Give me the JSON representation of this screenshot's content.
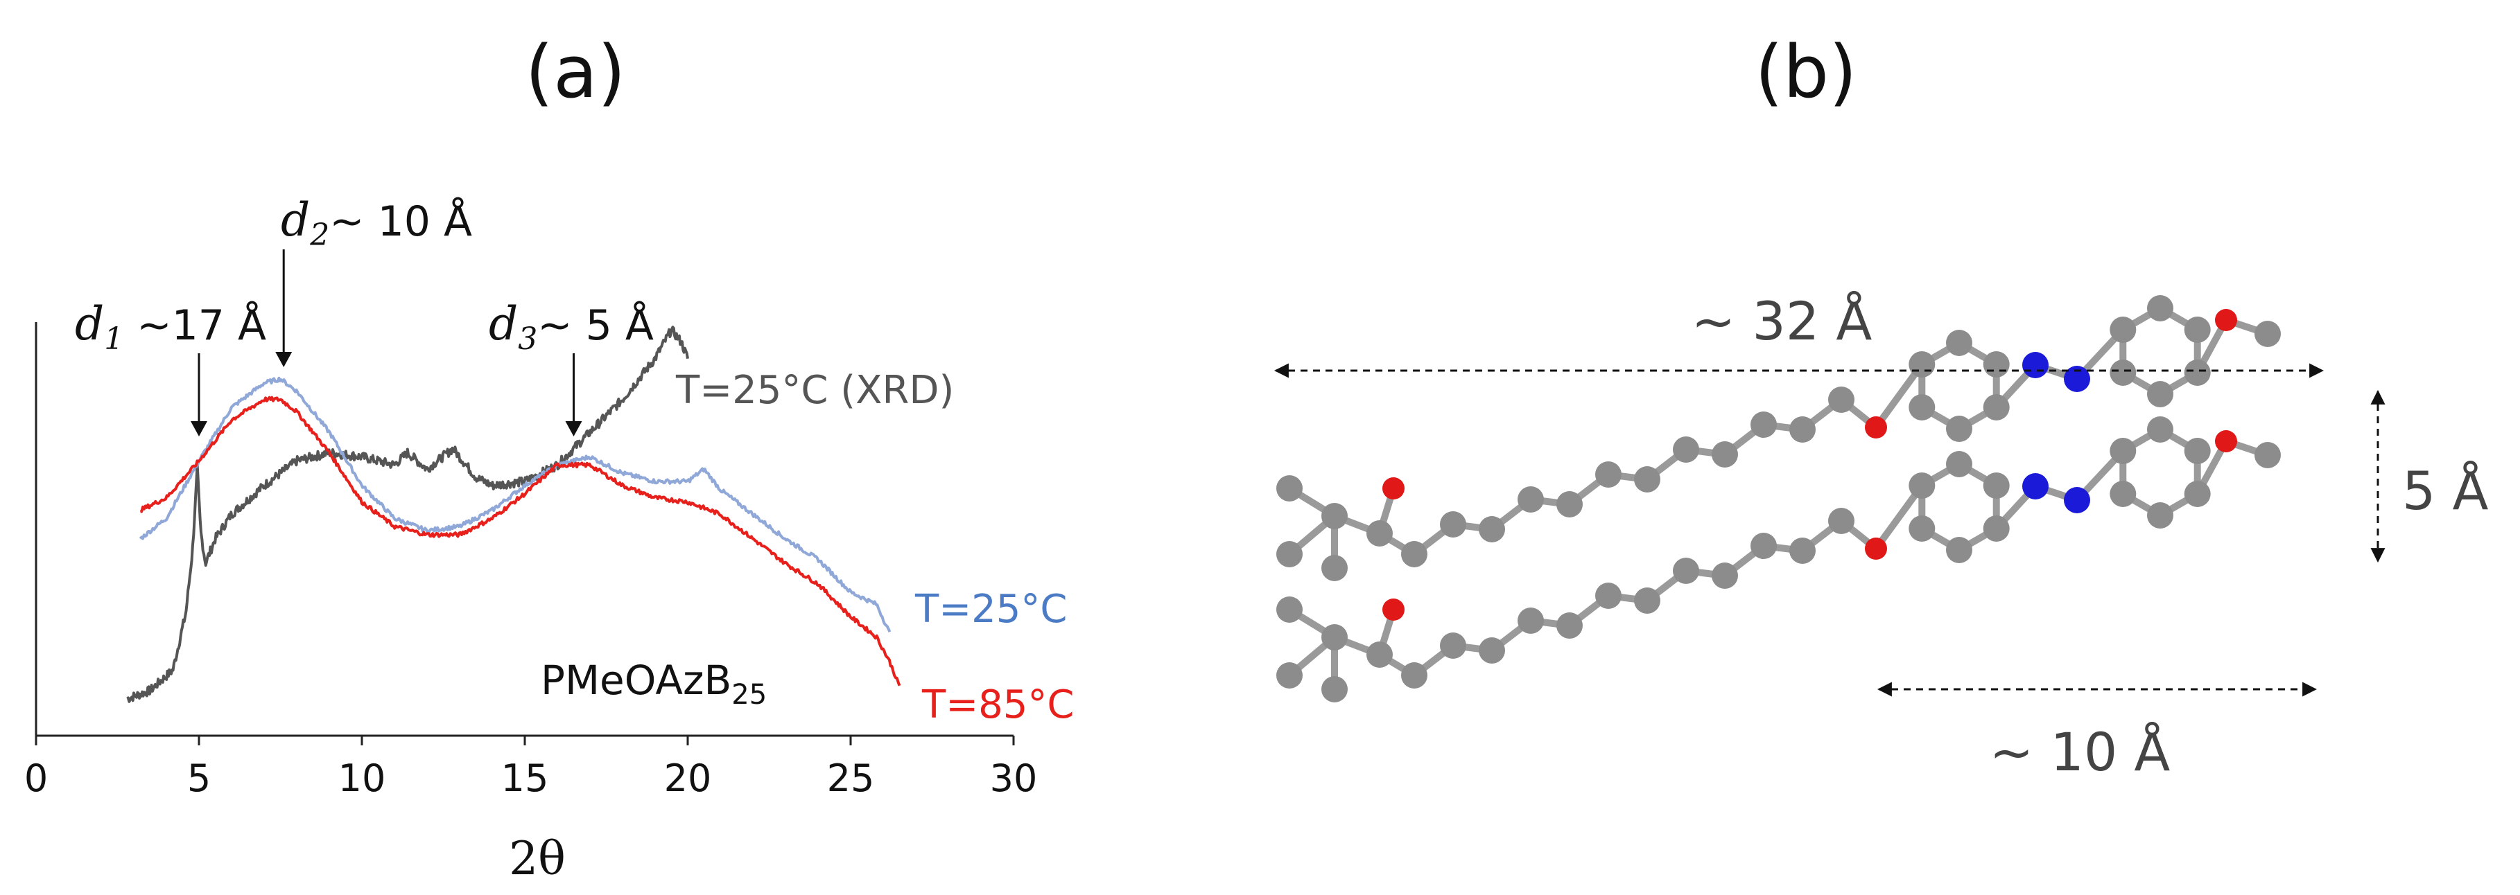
{
  "figure": {
    "panel_a_label": "(a)",
    "panel_b_label": "(b)"
  },
  "chart_data": {
    "type": "line",
    "xlabel": "2θ",
    "ylabel": "",
    "xlim": [
      0,
      30
    ],
    "xticks": [
      "0",
      "5",
      "10",
      "15",
      "20",
      "25",
      "30"
    ],
    "grid": false,
    "sample_label": "PMeOAzB",
    "sample_label_subscript": "25",
    "annotations": [
      {
        "var": "d",
        "sub": "1",
        "text": " ~17 Å",
        "x": 5.0
      },
      {
        "var": "d",
        "sub": "2",
        "text": "~ 10 Å",
        "x": 7.6
      },
      {
        "var": "d",
        "sub": "3",
        "text": "~ 5 Å",
        "x": 16.5
      }
    ],
    "series": [
      {
        "name": "T=25°C (XRD)",
        "color": "#555555",
        "x": [
          2.8,
          3.5,
          4.2,
          4.6,
          4.8,
          4.95,
          5.05,
          5.2,
          5.5,
          6,
          7,
          8,
          9,
          10,
          11,
          11.4,
          12,
          12.8,
          13.5,
          14,
          15,
          16,
          17,
          18,
          19,
          19.5,
          19.8,
          20
        ],
        "y": [
          0.09,
          0.11,
          0.16,
          0.3,
          0.45,
          0.65,
          0.5,
          0.42,
          0.48,
          0.54,
          0.61,
          0.67,
          0.69,
          0.68,
          0.66,
          0.69,
          0.65,
          0.7,
          0.63,
          0.61,
          0.62,
          0.66,
          0.74,
          0.82,
          0.92,
          0.99,
          0.96,
          0.92
        ]
      },
      {
        "name": "T=25°C",
        "color": "#8fa8d8",
        "x": [
          3.2,
          4,
          5,
          6,
          7,
          7.5,
          8,
          9,
          10,
          11,
          12,
          13,
          14,
          15,
          16,
          17,
          18,
          19,
          20,
          20.5,
          21,
          22,
          23,
          24,
          25,
          25.8,
          26.2
        ],
        "y": [
          0.48,
          0.53,
          0.67,
          0.8,
          0.86,
          0.87,
          0.84,
          0.74,
          0.61,
          0.53,
          0.5,
          0.51,
          0.55,
          0.61,
          0.66,
          0.68,
          0.64,
          0.62,
          0.62,
          0.65,
          0.6,
          0.54,
          0.48,
          0.43,
          0.35,
          0.32,
          0.25
        ]
      },
      {
        "name": "T=85°C",
        "color": "#e8201c",
        "x": [
          3.2,
          4,
          5,
          6,
          7,
          7.5,
          8,
          9,
          10,
          11,
          12,
          13,
          14,
          15,
          16,
          17,
          18,
          19,
          20,
          21,
          22,
          23,
          24,
          25,
          25.8,
          26.2,
          26.5
        ],
        "y": [
          0.55,
          0.58,
          0.67,
          0.77,
          0.82,
          0.82,
          0.79,
          0.69,
          0.57,
          0.51,
          0.49,
          0.49,
          0.53,
          0.59,
          0.66,
          0.66,
          0.61,
          0.58,
          0.57,
          0.54,
          0.48,
          0.42,
          0.37,
          0.29,
          0.24,
          0.18,
          0.12
        ]
      }
    ],
    "series_labels": [
      "T=25°C (XRD)",
      "T=25°C",
      "T=85°C"
    ]
  },
  "panel_b": {
    "dim_top": "~ 32 Å",
    "dim_right": "5 Å",
    "dim_bottom": "~ 10 Å"
  }
}
